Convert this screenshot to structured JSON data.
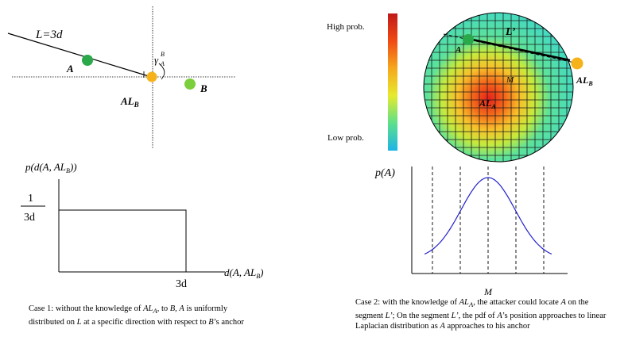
{
  "case1": {
    "top_diagram": {
      "length_label": "L=3d",
      "node_a": "A",
      "node_b": "B",
      "anchor_label": "AL",
      "anchor_sub": "B",
      "angle_symbol": "γ",
      "angle_super": "B",
      "angle_sub": "A",
      "colors": {
        "node_a": "#2aa84a",
        "node_b": "#7ccf3c",
        "anchor": "#f5b21a"
      }
    },
    "plot": {
      "ylabel_main": "p(d(A, AL",
      "ylabel_sub": "B",
      "ylabel_end": "))",
      "frac_num": "1",
      "frac_den": "3d",
      "xlabel_main": "d(A, AL",
      "xlabel_sub": "B",
      "xlabel_end": ")",
      "xtick": "3d"
    },
    "caption": {
      "p1": "Case 1: without the knowledge of ",
      "al": "AL",
      "al_sub": "A",
      "p2": ", to ",
      "b1": "B",
      "p3": ", ",
      "a1": "A",
      "p4": " is uniformly distributed on ",
      "l1": "L",
      "p5": " at a specific direction with respect to ",
      "b2": "B",
      "p6": "’s anchor"
    }
  },
  "case2": {
    "heatmap": {
      "high_label": "High prob.",
      "low_label": "Low prob.",
      "seg_label": "L’",
      "m_label": "M",
      "node_a": "A",
      "center_label": "AL",
      "center_sub": "A",
      "anchor_label": "AL",
      "anchor_sub": "B",
      "colors": {
        "node_a": "#2aa84a",
        "anchor": "#f5b21a",
        "grid": "#1a1a1a"
      }
    },
    "plot": {
      "ylabel": "p(A)",
      "xtick": "M",
      "curve_color": "#2222cc"
    },
    "caption": {
      "p1": "Case 2: with the knowledge of ",
      "al": "AL",
      "al_sub": "A",
      "p2": ", the attacker could locate ",
      "a1": "A",
      "p3": " on the segment ",
      "l1": "L’",
      "p4": "; On the segment ",
      "l2": "L’",
      "p5": ", the pdf of ",
      "a2": "A",
      "p6": "’s position approaches to linear Laplacian distribution as ",
      "a3": "A",
      "p7": " approaches to his anchor"
    }
  }
}
